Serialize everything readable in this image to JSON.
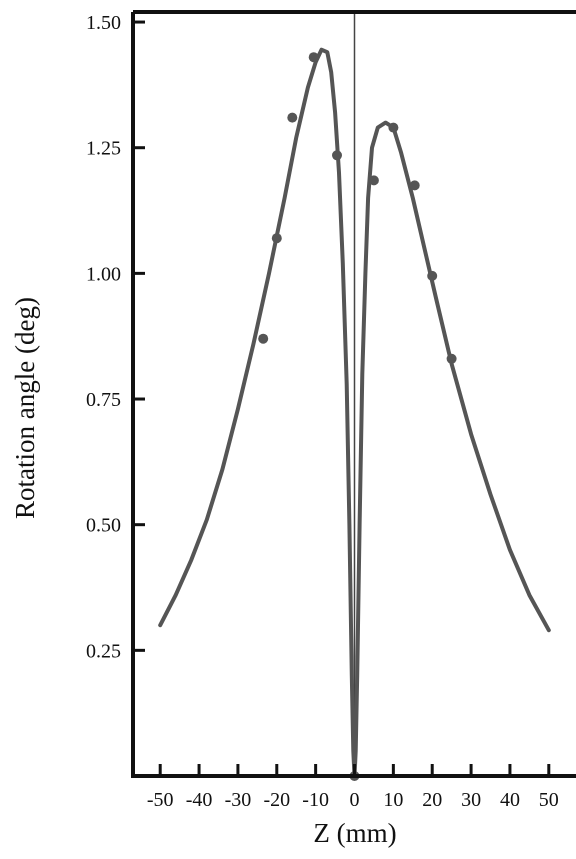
{
  "chart_data": {
    "type": "line",
    "title": "",
    "xlabel": "Z (mm)",
    "ylabel": "Rotation angle (deg)",
    "xlim": [
      -57,
      57
    ],
    "ylim": [
      0,
      1.52
    ],
    "x_ticks": [
      -50,
      -40,
      -30,
      -20,
      -10,
      0,
      10,
      20,
      30,
      40,
      50
    ],
    "x_tick_labels": [
      "-50",
      "-40",
      "-30",
      "-20",
      "-10",
      "0",
      "10",
      "20",
      "30",
      "40",
      "50"
    ],
    "y_ticks": [
      0.25,
      0.5,
      0.75,
      1.0,
      1.25,
      1.5
    ],
    "y_tick_labels": [
      "0.25",
      "0.50",
      "0.75",
      "1.00",
      "1.25",
      "1.50"
    ],
    "grid": false,
    "legend": "none",
    "vertical_reference_x": 0,
    "series": [
      {
        "kind": "line",
        "color": "#555555",
        "points": [
          [
            -50,
            0.3
          ],
          [
            -46,
            0.36
          ],
          [
            -42,
            0.43
          ],
          [
            -38,
            0.51
          ],
          [
            -34,
            0.61
          ],
          [
            -30,
            0.73
          ],
          [
            -26,
            0.86
          ],
          [
            -22,
            1.0
          ],
          [
            -18,
            1.15
          ],
          [
            -15,
            1.27
          ],
          [
            -12,
            1.37
          ],
          [
            -10,
            1.42
          ],
          [
            -8.5,
            1.445
          ],
          [
            -7,
            1.44
          ],
          [
            -6,
            1.4
          ],
          [
            -5,
            1.32
          ],
          [
            -4,
            1.2
          ],
          [
            -3,
            1.02
          ],
          [
            -2,
            0.78
          ],
          [
            -1.3,
            0.5
          ],
          [
            -0.7,
            0.2
          ],
          [
            -0.3,
            0.05
          ],
          [
            0,
            0
          ],
          [
            0.3,
            0.05
          ],
          [
            0.7,
            0.2
          ],
          [
            1.3,
            0.5
          ],
          [
            2,
            0.8
          ],
          [
            2.8,
            1.0
          ],
          [
            3.5,
            1.15
          ],
          [
            4.5,
            1.25
          ],
          [
            6,
            1.29
          ],
          [
            8,
            1.3
          ],
          [
            10,
            1.29
          ],
          [
            12,
            1.24
          ],
          [
            15,
            1.15
          ],
          [
            18,
            1.05
          ],
          [
            21,
            0.95
          ],
          [
            25,
            0.82
          ],
          [
            30,
            0.68
          ],
          [
            35,
            0.56
          ],
          [
            40,
            0.45
          ],
          [
            45,
            0.36
          ],
          [
            50,
            0.29
          ]
        ]
      },
      {
        "kind": "scatter",
        "color": "#555555",
        "points": [
          [
            -23.5,
            0.87
          ],
          [
            -20,
            1.07
          ],
          [
            -16,
            1.31
          ],
          [
            -10.5,
            1.43
          ],
          [
            -4.5,
            1.235
          ],
          [
            0,
            0
          ],
          [
            5,
            1.185
          ],
          [
            10,
            1.29
          ],
          [
            15.5,
            1.175
          ],
          [
            20,
            0.995
          ],
          [
            25,
            0.83
          ]
        ]
      }
    ]
  }
}
